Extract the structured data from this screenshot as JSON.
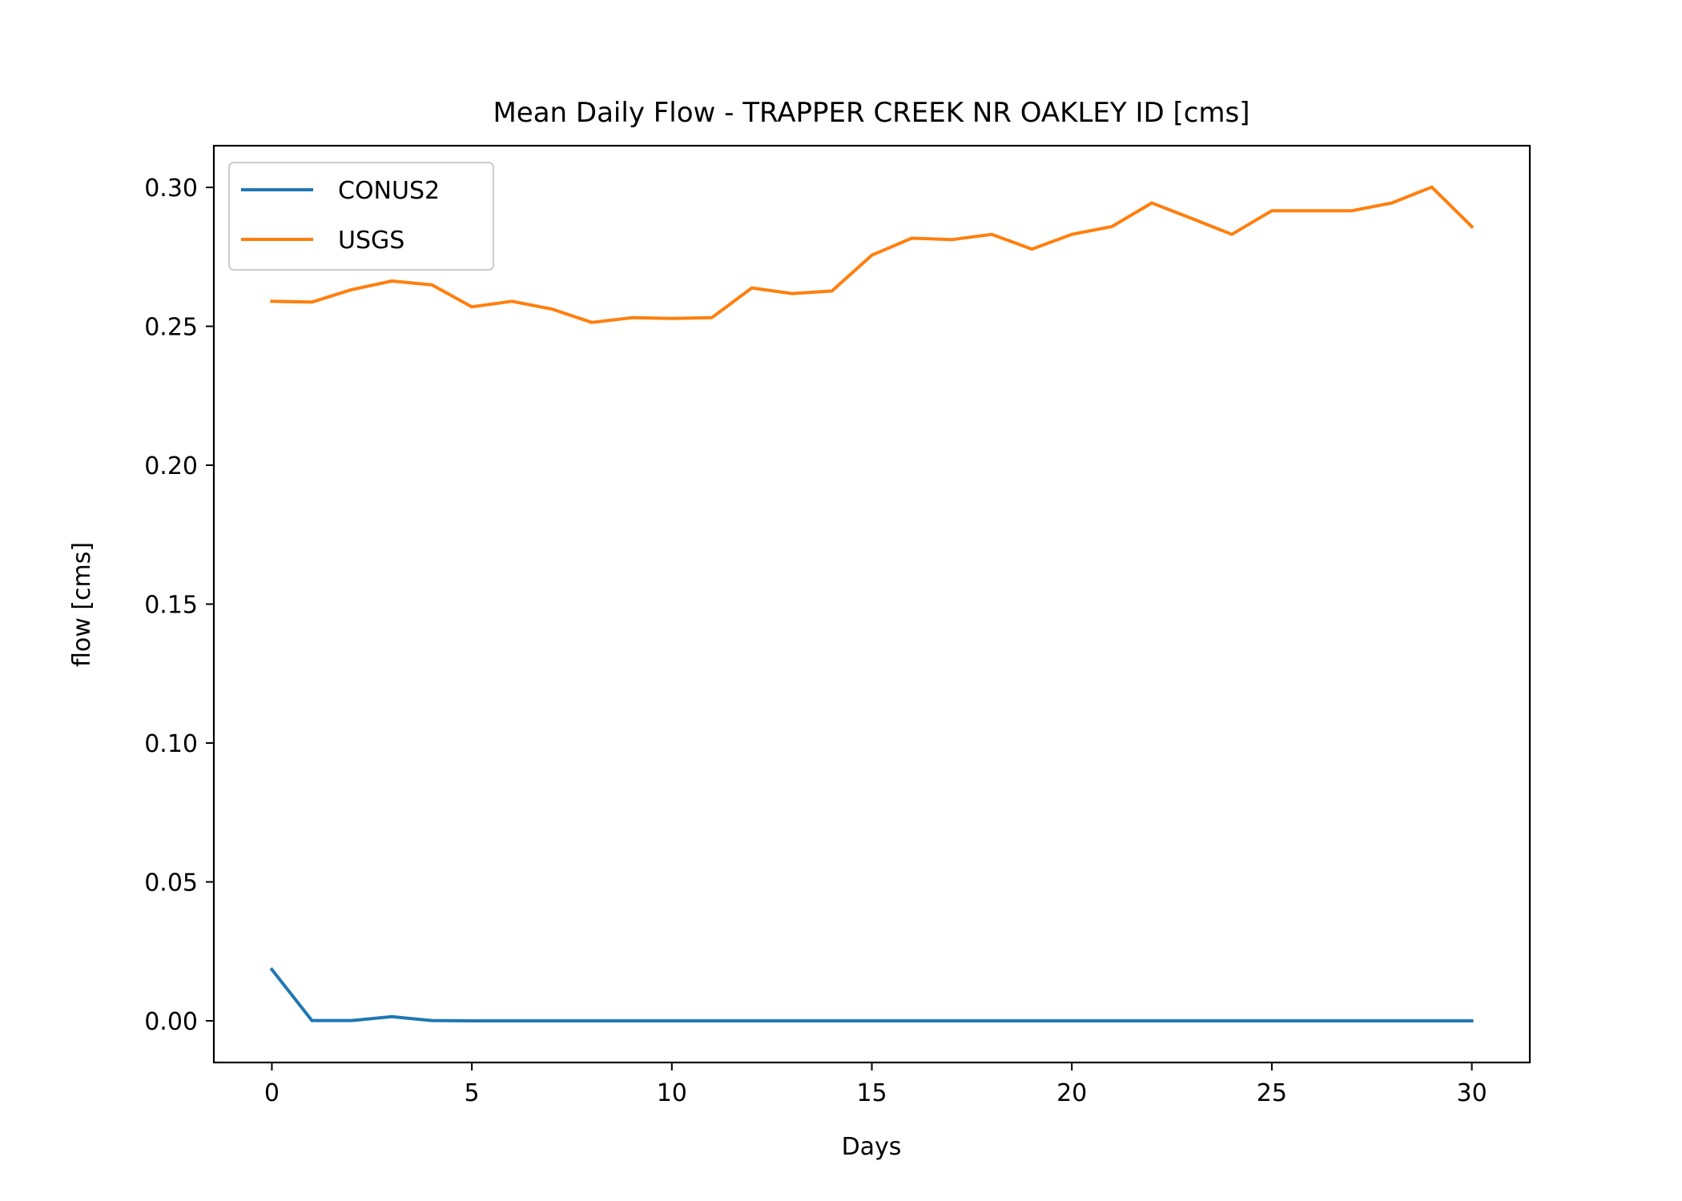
{
  "chart_data": {
    "type": "line",
    "title": "Mean Daily Flow - TRAPPER CREEK NR OAKLEY ID [cms]",
    "xlabel": "Days",
    "ylabel": "flow [cms]",
    "xlim": [
      -1.45,
      31.45
    ],
    "ylim": [
      -0.015,
      0.315
    ],
    "xticks": [
      0,
      5,
      10,
      15,
      20,
      25,
      30
    ],
    "xtick_labels": [
      "0",
      "5",
      "10",
      "15",
      "20",
      "25",
      "30"
    ],
    "yticks": [
      0.0,
      0.05,
      0.1,
      0.15,
      0.2,
      0.25,
      0.3
    ],
    "ytick_labels": [
      "0.00",
      "0.05",
      "0.10",
      "0.15",
      "0.20",
      "0.25",
      "0.30"
    ],
    "grid": false,
    "legend_position": "upper-left",
    "x": [
      0,
      1,
      2,
      3,
      4,
      5,
      6,
      7,
      8,
      9,
      10,
      11,
      12,
      13,
      14,
      15,
      16,
      17,
      18,
      19,
      20,
      21,
      22,
      23,
      24,
      25,
      26,
      27,
      28,
      29,
      30
    ],
    "series": [
      {
        "name": "CONUS2",
        "color": "#1f77b4",
        "values": [
          0.0185,
          0.0001,
          0.0001,
          0.0015,
          0.0001,
          0,
          0,
          0,
          0,
          0,
          0,
          0,
          0,
          0,
          0,
          0,
          0,
          0,
          0,
          0,
          0,
          0,
          0,
          0,
          0,
          0,
          0,
          0,
          0,
          0,
          0
        ]
      },
      {
        "name": "USGS",
        "color": "#ff7f0e",
        "values": [
          0.259,
          0.2587,
          0.2632,
          0.2663,
          0.2649,
          0.257,
          0.259,
          0.2562,
          0.2514,
          0.2531,
          0.2528,
          0.2531,
          0.2638,
          0.2618,
          0.2627,
          0.2756,
          0.2817,
          0.2812,
          0.2831,
          0.2778,
          0.2831,
          0.2859,
          0.2944,
          0.2888,
          0.2831,
          0.2916,
          0.2916,
          0.2916,
          0.2944,
          0.3001,
          0.2859
        ]
      }
    ]
  }
}
